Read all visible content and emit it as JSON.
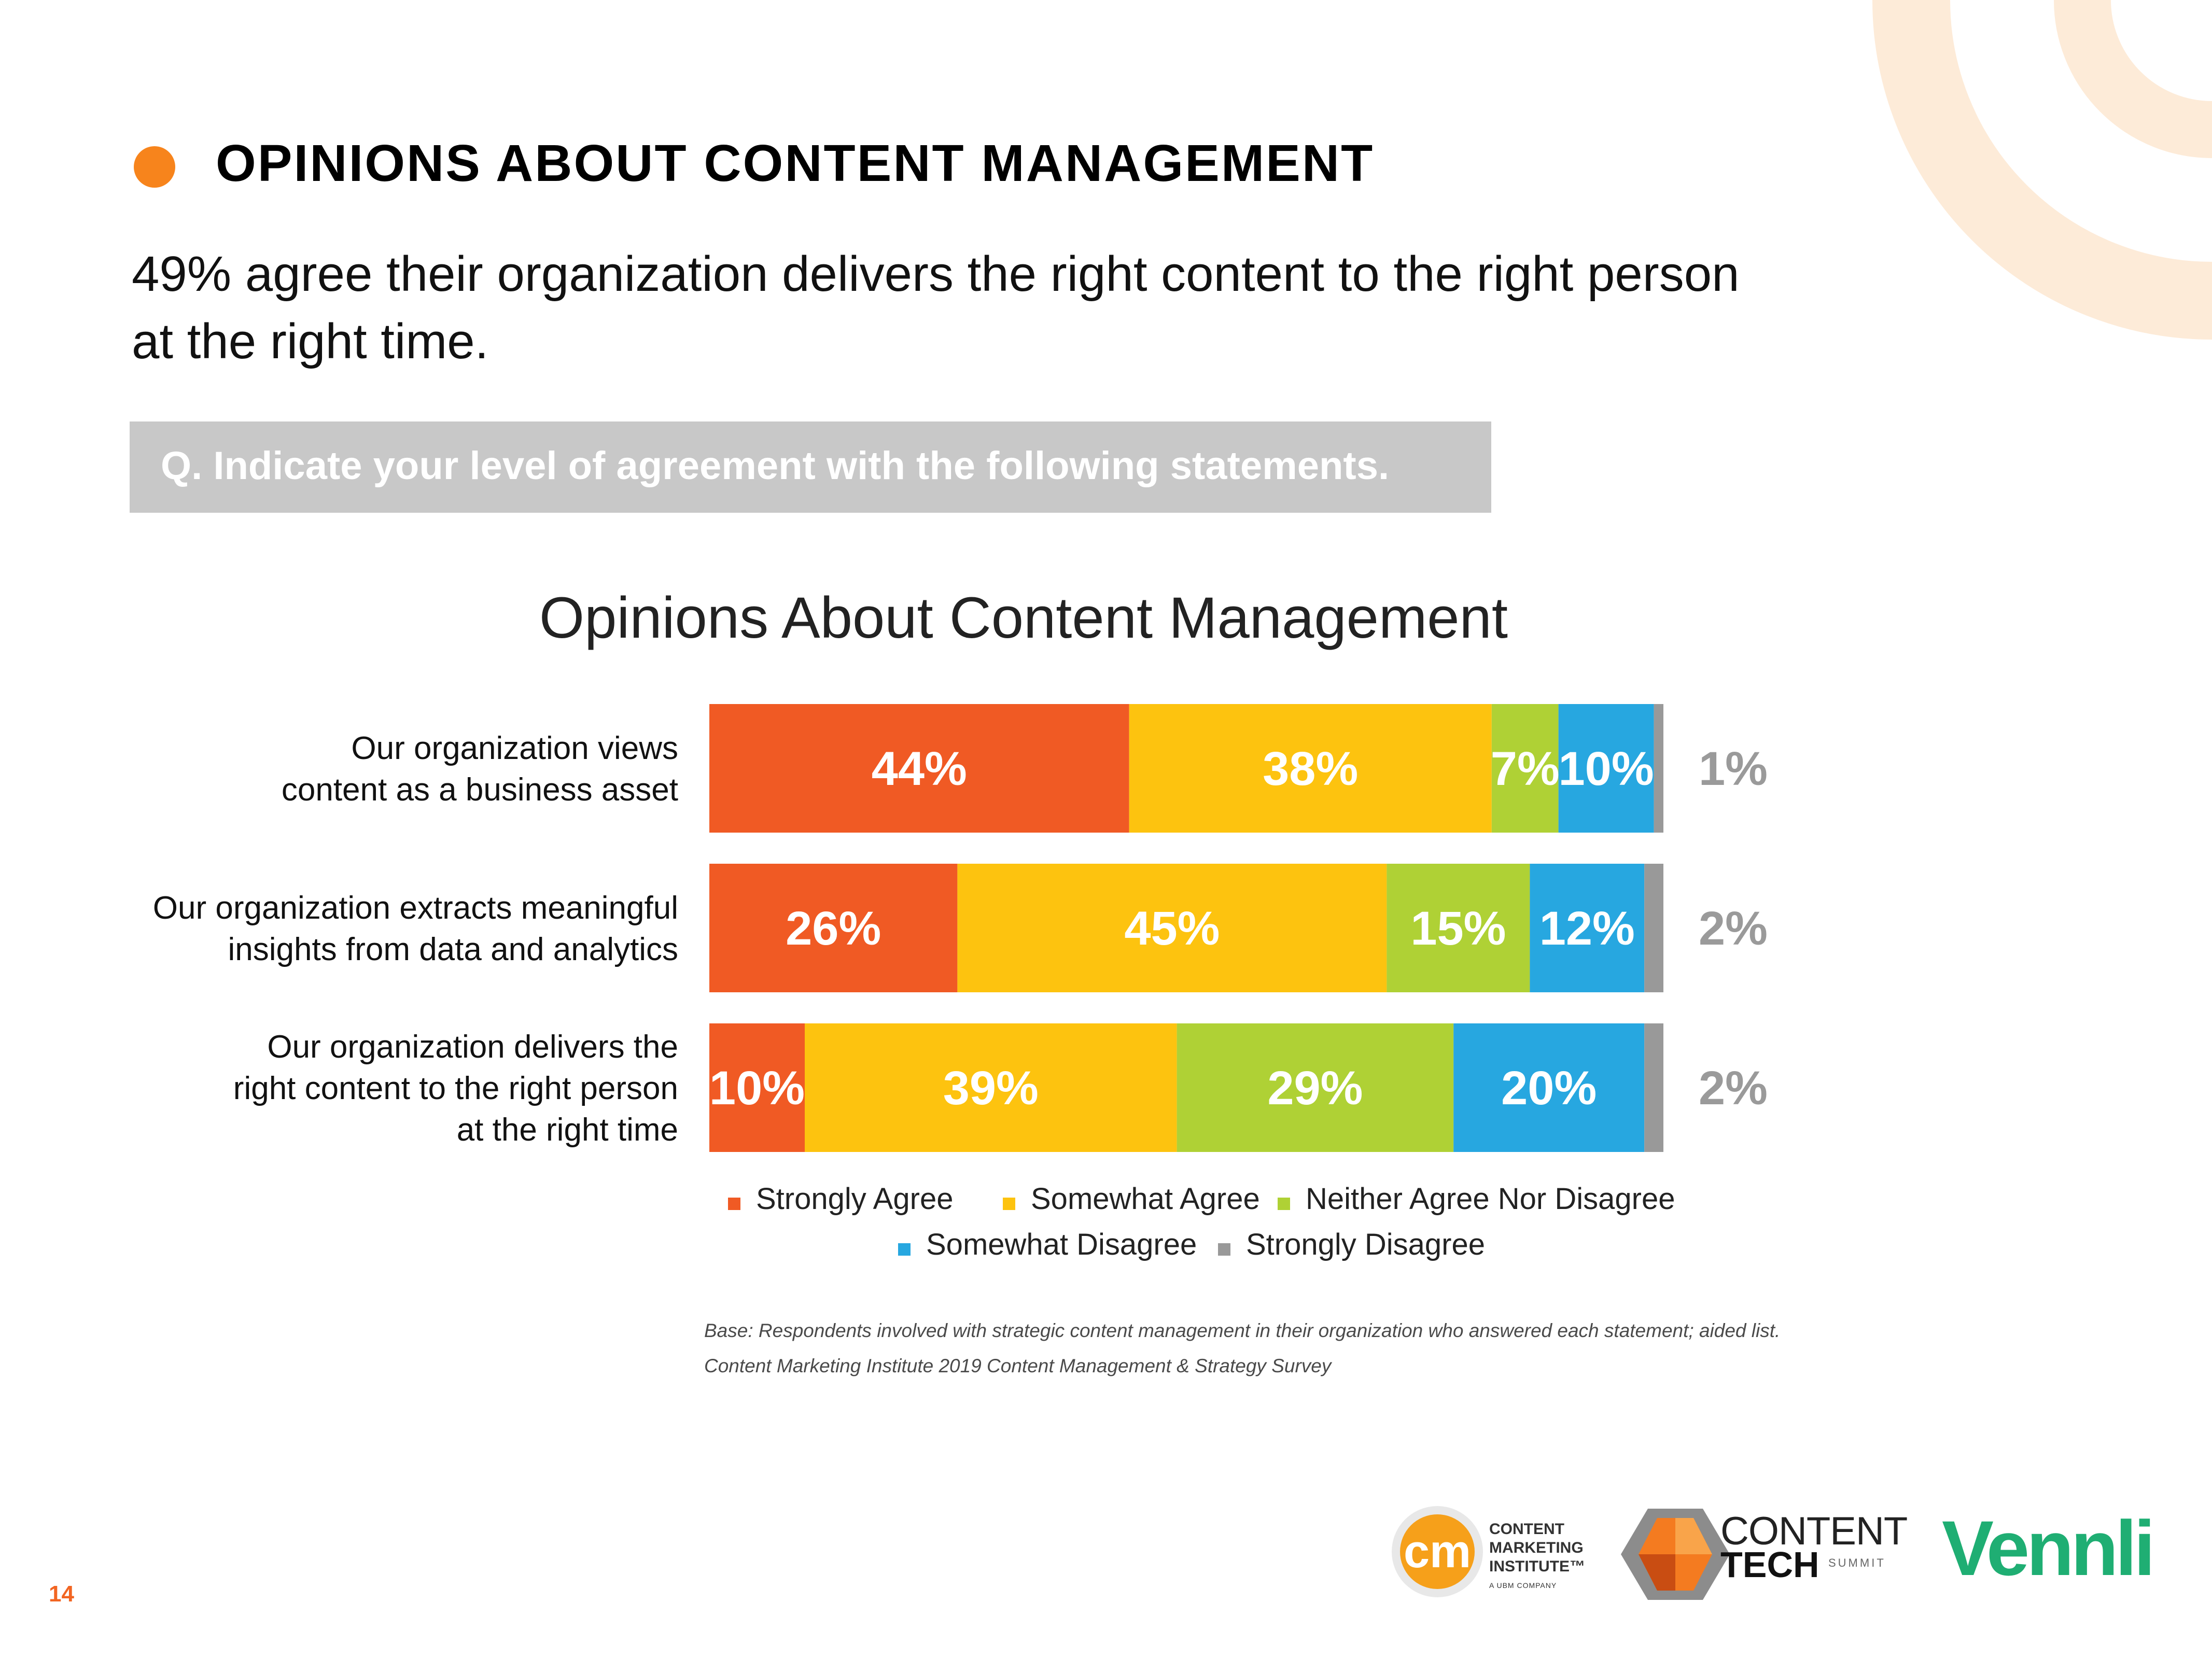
{
  "slide": {
    "title": "OPINIONS ABOUT CONTENT MANAGEMENT",
    "subtitle": "49% agree their organization delivers the right content to the right person at the right time.",
    "question": "Q. Indicate your level of agreement with the following statements.",
    "page_number": "14",
    "accent_color": "#f7841c"
  },
  "chart_data": {
    "type": "bar",
    "orientation": "horizontal",
    "stacked": true,
    "title": "Opinions About Content Management",
    "categories": [
      [
        "Our organization views",
        "content as a business asset"
      ],
      [
        "Our organization extracts meaningful",
        "insights from data and analytics"
      ],
      [
        "Our organization delivers the",
        "right content to the right person",
        "at the right time"
      ]
    ],
    "series": [
      {
        "name": "Strongly Agree",
        "color": "#f05a24",
        "values": [
          44,
          26,
          10
        ]
      },
      {
        "name": "Somewhat Agree",
        "color": "#fdc30f",
        "values": [
          38,
          45,
          39
        ]
      },
      {
        "name": "Neither Agree Nor Disagree",
        "color": "#afd135",
        "values": [
          7,
          15,
          29
        ]
      },
      {
        "name": "Somewhat Disagree",
        "color": "#27a7e0",
        "values": [
          10,
          12,
          20
        ]
      },
      {
        "name": "Strongly Disagree",
        "color": "#999999",
        "values": [
          1,
          2,
          2
        ]
      }
    ],
    "legend_position": "bottom",
    "units": "%"
  },
  "footnotes": {
    "base": "Base: Respondents involved with strategic content management in their organization who answered each statement; aided list.",
    "source": "Content Marketing Institute 2019 Content Management & Strategy Survey"
  },
  "logos": {
    "cm_badge": "cm",
    "cm_lines": [
      "CONTENT",
      "MARKETING",
      "INSTITUTE™"
    ],
    "cm_sub": "A UBM COMPANY",
    "tech_line1": "CONTENT",
    "tech_line2": "TECH",
    "tech_sub": "SUMMIT",
    "vennli": "Vennli"
  }
}
